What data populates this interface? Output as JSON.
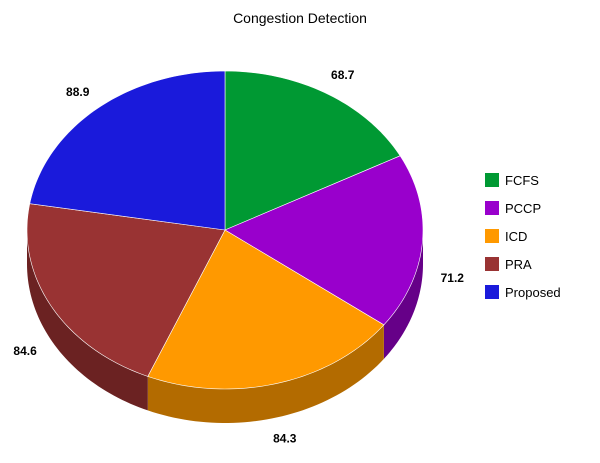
{
  "chart_data": {
    "type": "pie",
    "title": "Congestion Detection",
    "labels": [
      "FCFS",
      "PCCP",
      "ICD",
      "PRA",
      "Proposed"
    ],
    "values": [
      68.7,
      71.2,
      84.3,
      84.6,
      88.9
    ],
    "value_labels": [
      "68.7",
      "71.2",
      "84.3",
      "84.6",
      "88.9"
    ],
    "colors": [
      "#009933",
      "#9900cc",
      "#ff9900",
      "#993333",
      "#1a1adb"
    ],
    "side_colors": [
      "#006622",
      "#660088",
      "#b36b00",
      "#6b2222",
      "#10108f"
    ],
    "style": "3d",
    "legend_position": "right"
  }
}
